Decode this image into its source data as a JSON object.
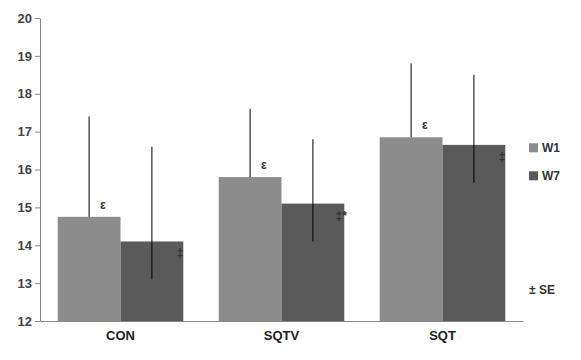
{
  "chart_data": {
    "type": "bar",
    "categories": [
      "CON",
      "SQTV",
      "SQT"
    ],
    "series": [
      {
        "name": "W1",
        "color": "#8c8c8c",
        "values": [
          14.75,
          15.8,
          16.85
        ],
        "error_plus": [
          2.65,
          1.8,
          1.95
        ],
        "annotations": [
          "ε",
          "ε",
          "ε"
        ]
      },
      {
        "name": "W7",
        "color": "#5a5a5a",
        "values": [
          14.1,
          15.1,
          16.65
        ],
        "error_plus": [
          2.5,
          1.7,
          1.85
        ],
        "error_minus": [
          1.0,
          1.0,
          1.0
        ],
        "annotations": [
          "‡",
          "‡*",
          "‡"
        ]
      }
    ],
    "error_label": "± SE",
    "ylim": [
      12,
      20
    ],
    "yticks": [
      12,
      13,
      14,
      15,
      16,
      17,
      18,
      19,
      20
    ],
    "grid": false,
    "legend": "right"
  }
}
